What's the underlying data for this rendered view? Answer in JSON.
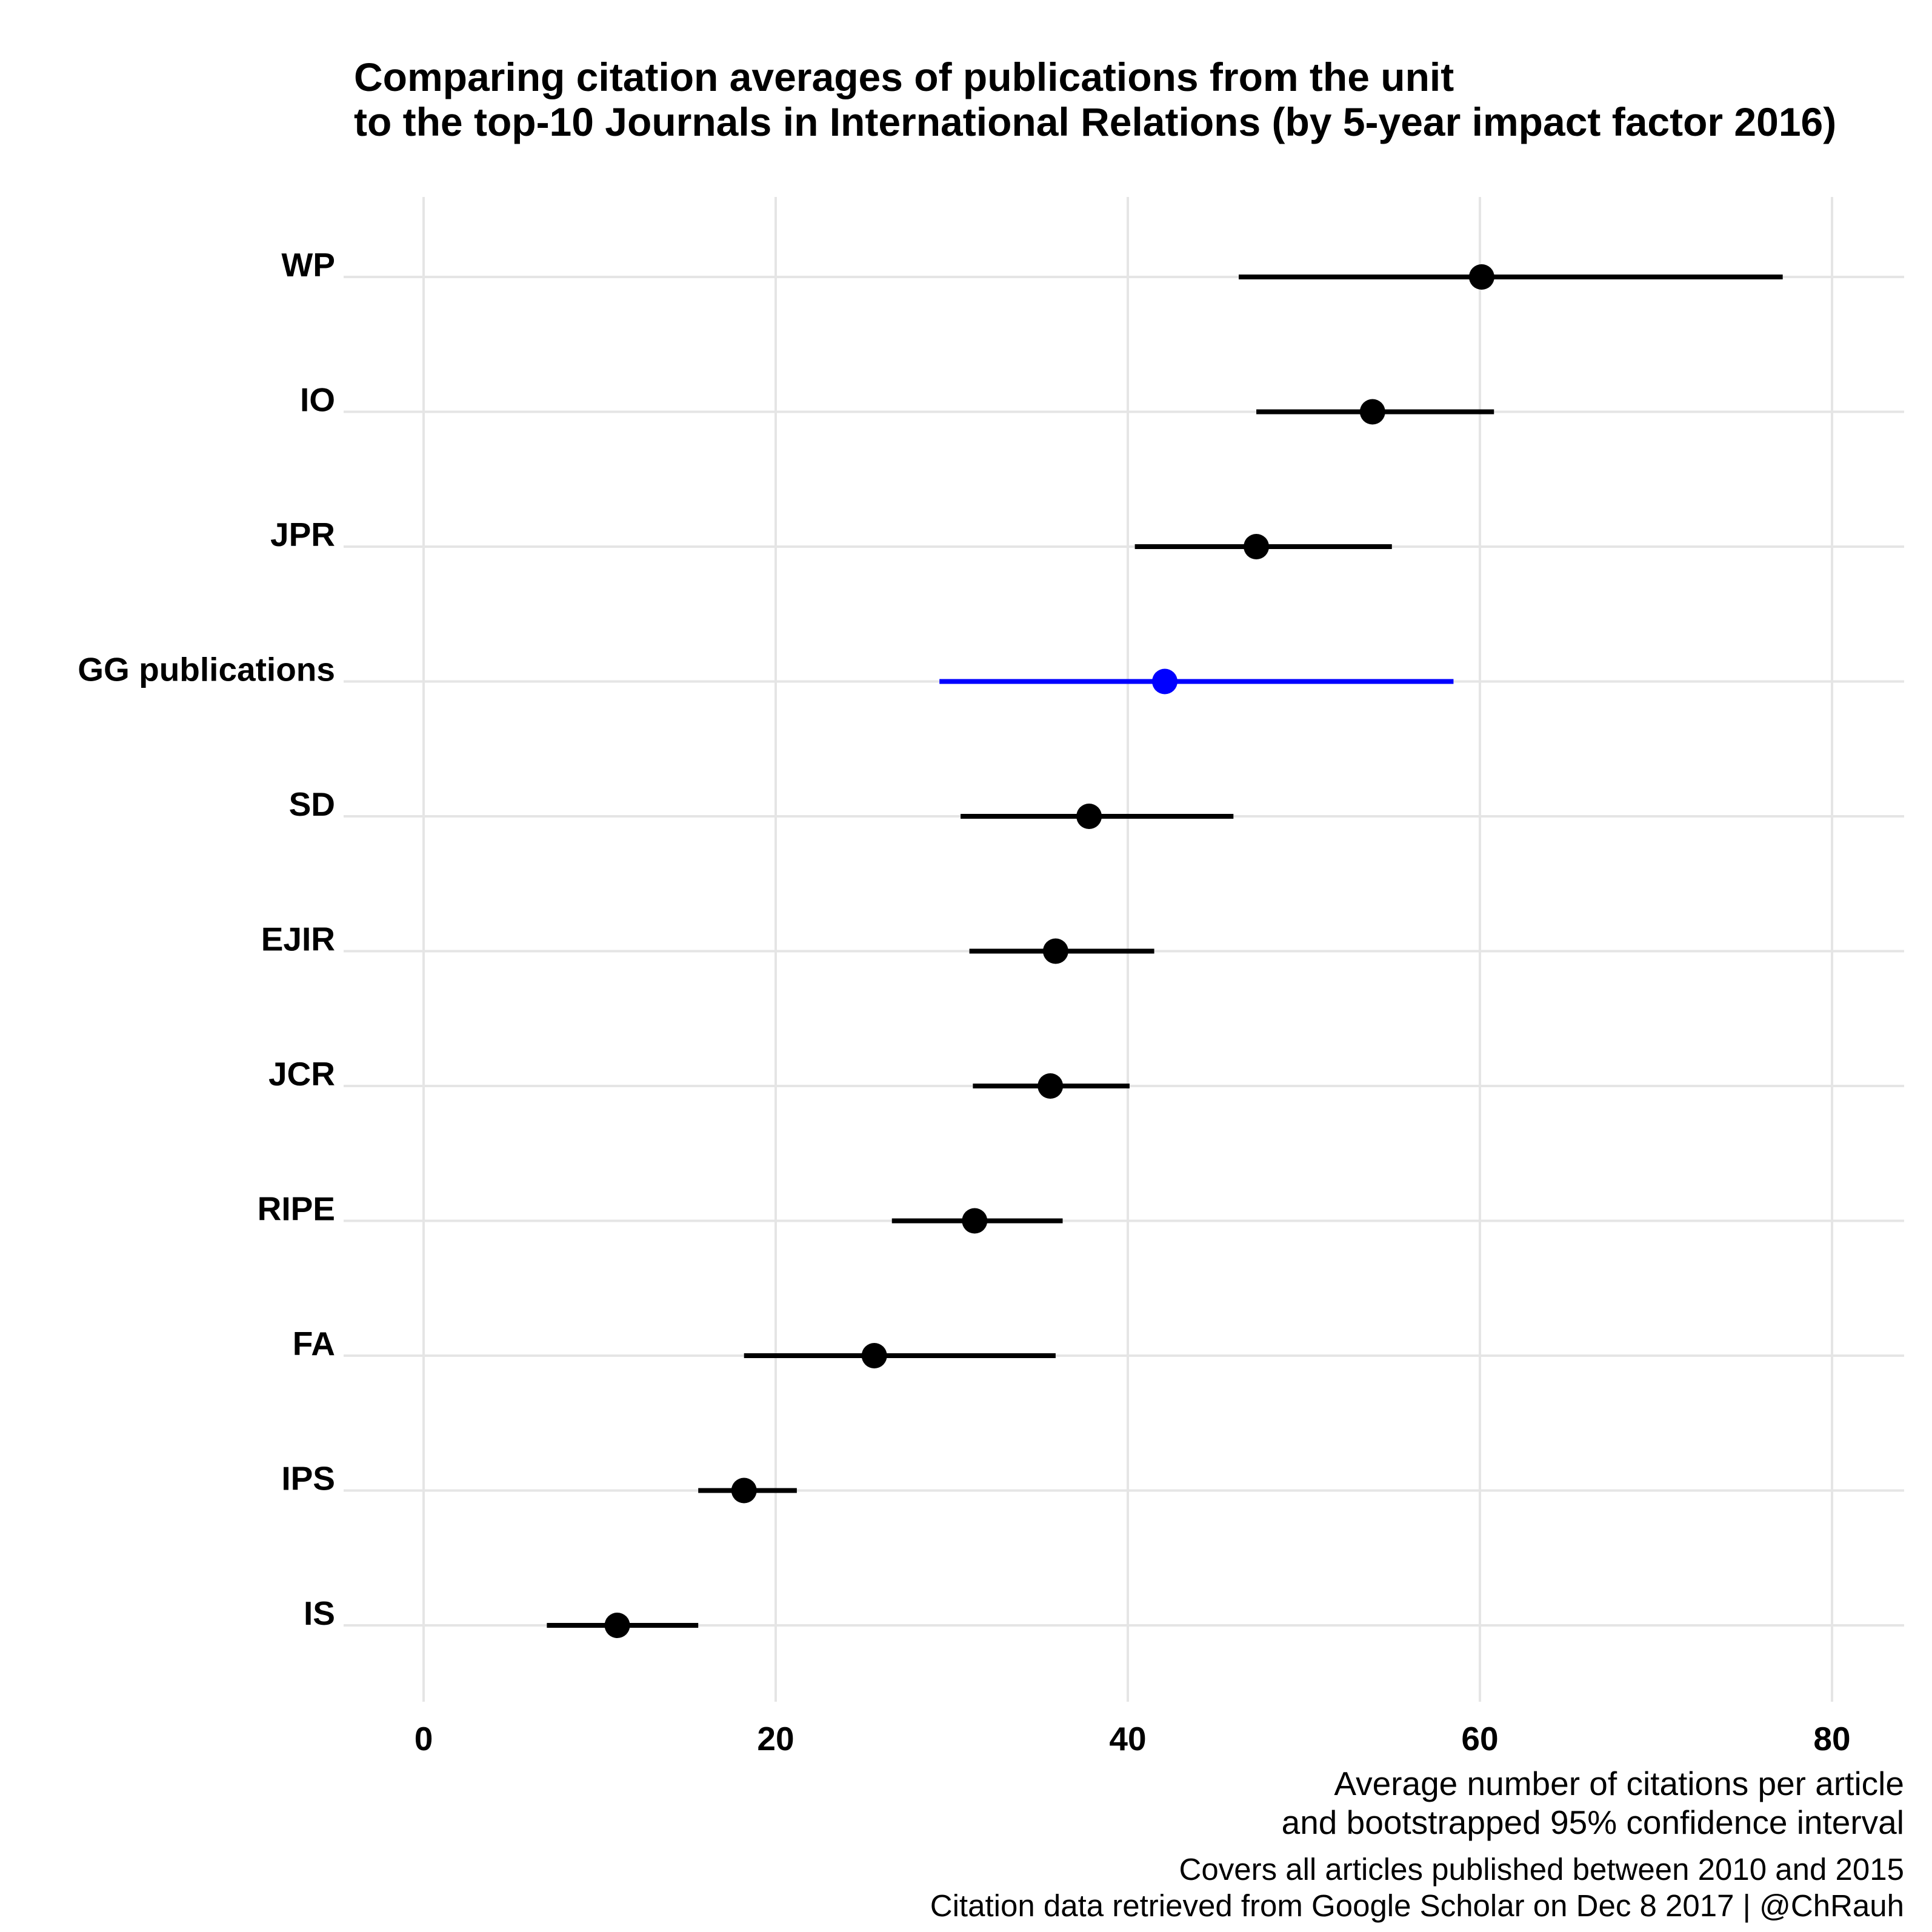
{
  "chart_data": {
    "type": "scatter",
    "title": [
      "Comparing citation averages of publications from the unit",
      "to the top-10 Journals in International Relations (by 5-year impact factor 2016)"
    ],
    "xlabel": [
      "Average number of citations per article",
      "and bootstrapped 95% confidence interval"
    ],
    "caption": [
      "Covers all articles published between 2010 and 2015",
      "Citation data retrieved from Google Scholar on Dec 8 2017 | @ChRauh"
    ],
    "xlim": [
      -4.5,
      84
    ],
    "x_ticks": [
      0,
      20,
      40,
      60,
      80
    ],
    "grid": true,
    "colors": {
      "default": "#000000",
      "highlight": "#0000ff",
      "grid": "#e5e5e5"
    },
    "rows": [
      {
        "label": "WP",
        "mean": 60.1,
        "lower": 46.3,
        "upper": 77.2
      },
      {
        "label": "IO",
        "mean": 53.9,
        "lower": 47.3,
        "upper": 60.8
      },
      {
        "label": "JPR",
        "mean": 47.3,
        "lower": 40.4,
        "upper": 55.0
      },
      {
        "label": "GG publications",
        "mean": 42.1,
        "lower": 29.3,
        "upper": 58.5,
        "highlight": true
      },
      {
        "label": "SD",
        "mean": 37.8,
        "lower": 30.5,
        "upper": 46.0
      },
      {
        "label": "EJIR",
        "mean": 35.9,
        "lower": 31.0,
        "upper": 41.5
      },
      {
        "label": "JCR",
        "mean": 35.6,
        "lower": 31.2,
        "upper": 40.1
      },
      {
        "label": "RIPE",
        "mean": 31.3,
        "lower": 26.6,
        "upper": 36.3
      },
      {
        "label": "FA",
        "mean": 25.6,
        "lower": 18.2,
        "upper": 35.9
      },
      {
        "label": "IPS",
        "mean": 18.2,
        "lower": 15.6,
        "upper": 21.2
      },
      {
        "label": "IS",
        "mean": 11.0,
        "lower": 7.0,
        "upper": 15.6
      }
    ]
  }
}
